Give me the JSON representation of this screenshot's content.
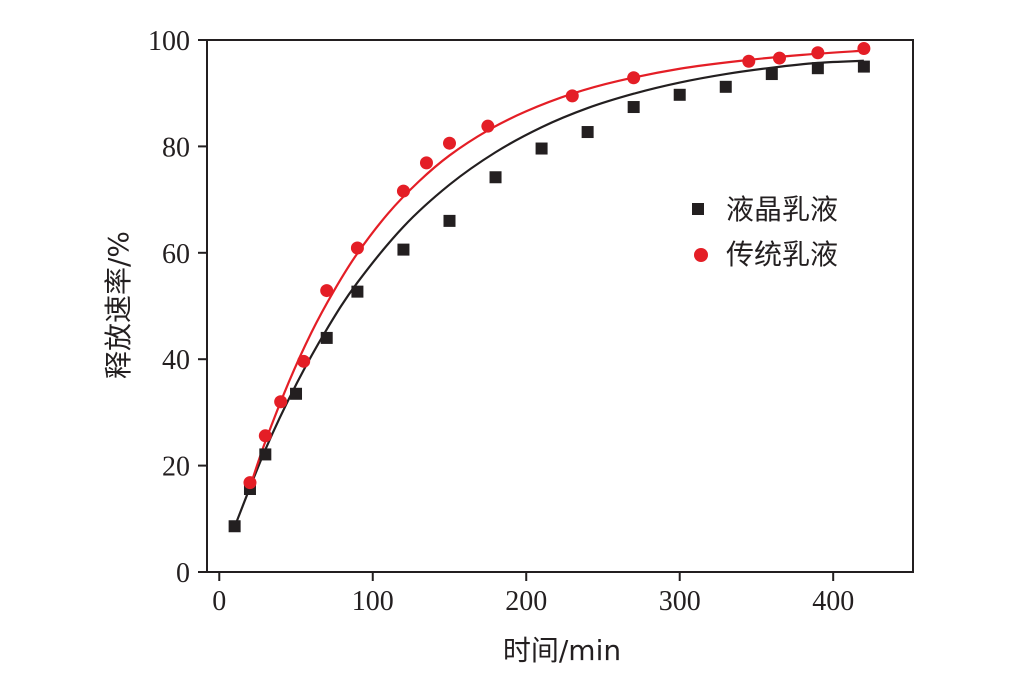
{
  "chart_data": {
    "type": "scatter",
    "title": "",
    "xlabel": "时间/min",
    "ylabel": "释放速率/%",
    "xlim": [
      -8,
      452
    ],
    "ylim": [
      0,
      100
    ],
    "xticks": [
      0,
      100,
      200,
      300,
      400
    ],
    "yticks": [
      0,
      20,
      40,
      60,
      80,
      100
    ],
    "grid": false,
    "legend_position": "right",
    "series": [
      {
        "name": "液晶乳液",
        "marker": "square",
        "color": "#231f20",
        "points": [
          [
            10,
            8.6
          ],
          [
            20,
            15.6
          ],
          [
            30,
            22.1
          ],
          [
            50,
            33.5
          ],
          [
            70,
            44.0
          ],
          [
            90,
            52.7
          ],
          [
            120,
            60.6
          ],
          [
            150,
            66.0
          ],
          [
            180,
            74.2
          ],
          [
            210,
            79.6
          ],
          [
            240,
            82.7
          ],
          [
            270,
            87.4
          ],
          [
            300,
            89.7
          ],
          [
            330,
            91.2
          ],
          [
            360,
            93.6
          ],
          [
            390,
            94.7
          ],
          [
            420,
            95.0
          ]
        ],
        "fit": [
          [
            10,
            8.5
          ],
          [
            30,
            23.0
          ],
          [
            50,
            35.2
          ],
          [
            70,
            45.6
          ],
          [
            90,
            54.4
          ],
          [
            120,
            64.9
          ],
          [
            150,
            72.8
          ],
          [
            180,
            78.9
          ],
          [
            210,
            83.6
          ],
          [
            240,
            87.2
          ],
          [
            270,
            89.9
          ],
          [
            300,
            92.0
          ],
          [
            330,
            93.6
          ],
          [
            360,
            94.8
          ],
          [
            390,
            95.7
          ],
          [
            420,
            96.1
          ]
        ]
      },
      {
        "name": "传统乳液",
        "marker": "circle",
        "color": "#e41e26",
        "points": [
          [
            20,
            16.8
          ],
          [
            30,
            25.6
          ],
          [
            40,
            32.0
          ],
          [
            55,
            39.6
          ],
          [
            70,
            52.9
          ],
          [
            90,
            60.9
          ],
          [
            120,
            71.6
          ],
          [
            135,
            76.9
          ],
          [
            150,
            80.6
          ],
          [
            175,
            83.8
          ],
          [
            230,
            89.5
          ],
          [
            270,
            92.9
          ],
          [
            345,
            96.0
          ],
          [
            365,
            96.6
          ],
          [
            390,
            97.6
          ],
          [
            420,
            98.4
          ]
        ],
        "fit": [
          [
            20,
            16.0
          ],
          [
            30,
            24.5
          ],
          [
            45,
            35.5
          ],
          [
            60,
            45.0
          ],
          [
            75,
            53.0
          ],
          [
            90,
            59.9
          ],
          [
            110,
            67.4
          ],
          [
            130,
            73.4
          ],
          [
            150,
            78.3
          ],
          [
            175,
            83.0
          ],
          [
            200,
            86.6
          ],
          [
            230,
            89.9
          ],
          [
            260,
            92.3
          ],
          [
            300,
            94.6
          ],
          [
            340,
            96.1
          ],
          [
            380,
            97.2
          ],
          [
            420,
            98.0
          ]
        ]
      }
    ]
  }
}
